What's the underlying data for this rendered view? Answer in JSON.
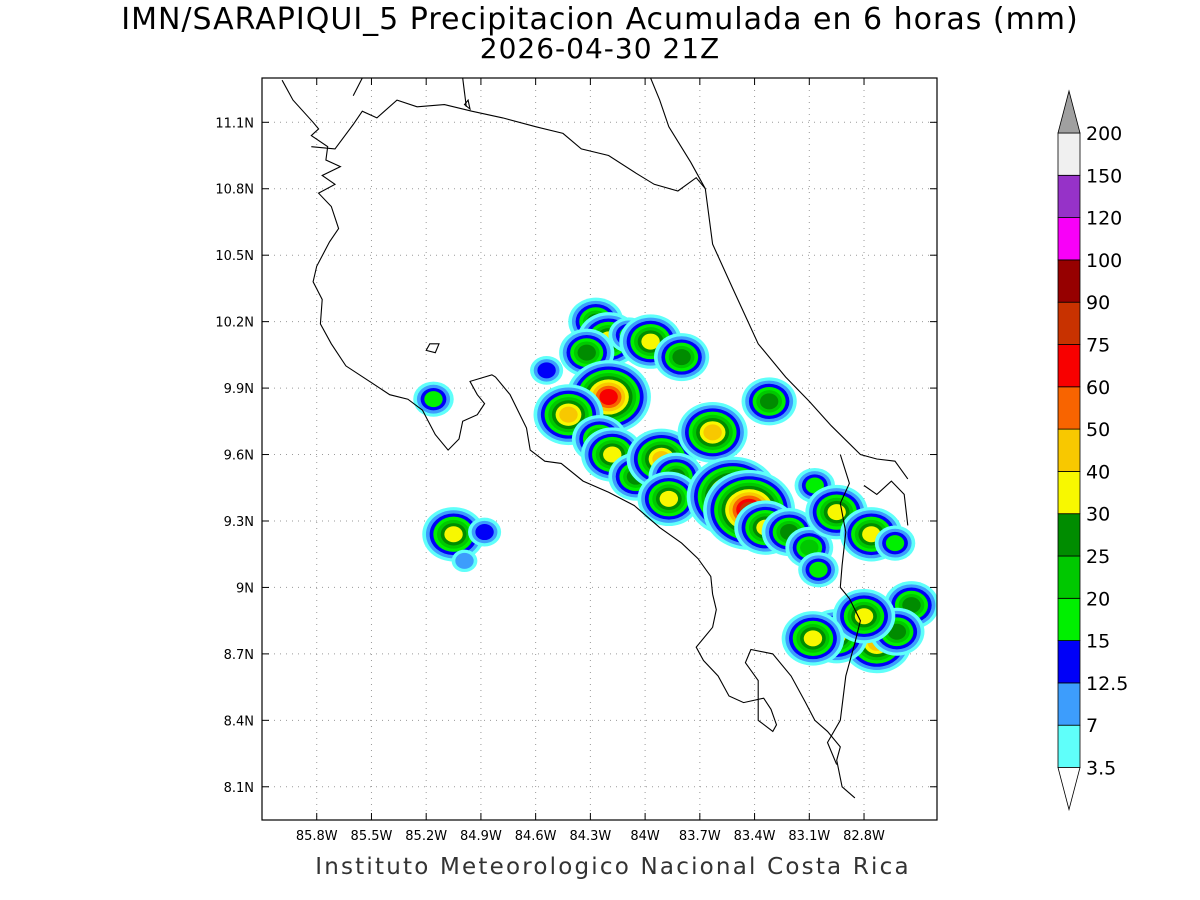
{
  "title": {
    "line1": "IMN/SARAPIQUI_5 Precipitacion Acumulada en 6 horas (mm)",
    "line2": "2026-04-30 21Z"
  },
  "footer": "Instituto Meteorologico Nacional Costa Rica",
  "map": {
    "lon_range": [
      -86.1,
      -82.4
    ],
    "lat_range": [
      7.95,
      11.3
    ],
    "lon_ticks": [
      {
        "value": -85.8,
        "label": "85.8W"
      },
      {
        "value": -85.5,
        "label": "85.5W"
      },
      {
        "value": -85.2,
        "label": "85.2W"
      },
      {
        "value": -84.9,
        "label": "84.9W"
      },
      {
        "value": -84.6,
        "label": "84.6W"
      },
      {
        "value": -84.3,
        "label": "84.3W"
      },
      {
        "value": -84.0,
        "label": "84W"
      },
      {
        "value": -83.7,
        "label": "83.7W"
      },
      {
        "value": -83.4,
        "label": "83.4W"
      },
      {
        "value": -83.1,
        "label": "83.1W"
      },
      {
        "value": -82.8,
        "label": "82.8W"
      }
    ],
    "lat_ticks": [
      {
        "value": 8.1,
        "label": "8.1N"
      },
      {
        "value": 8.4,
        "label": "8.4N"
      },
      {
        "value": 8.7,
        "label": "8.7N"
      },
      {
        "value": 9.0,
        "label": "9N"
      },
      {
        "value": 9.3,
        "label": "9.3N"
      },
      {
        "value": 9.6,
        "label": "9.6N"
      },
      {
        "value": 9.9,
        "label": "9.9N"
      },
      {
        "value": 10.2,
        "label": "10.2N"
      },
      {
        "value": 10.5,
        "label": "10.5N"
      },
      {
        "value": 10.8,
        "label": "10.8N"
      },
      {
        "value": 11.1,
        "label": "11.1N"
      }
    ],
    "grid": true,
    "coastlines": [
      [
        [
          -85.99,
          11.29
        ],
        [
          -85.93,
          11.2
        ],
        [
          -85.82,
          11.1
        ],
        [
          -85.79,
          11.07
        ],
        [
          -85.83,
          11.04
        ],
        [
          -85.74,
          10.99
        ],
        [
          -85.75,
          10.93
        ],
        [
          -85.67,
          10.9
        ],
        [
          -85.77,
          10.86
        ],
        [
          -85.7,
          10.82
        ],
        [
          -85.79,
          10.78
        ],
        [
          -85.72,
          10.72
        ],
        [
          -85.68,
          10.62
        ],
        [
          -85.73,
          10.56
        ],
        [
          -85.8,
          10.45
        ],
        [
          -85.82,
          10.38
        ],
        [
          -85.77,
          10.3
        ],
        [
          -85.78,
          10.19
        ],
        [
          -85.72,
          10.1
        ],
        [
          -85.64,
          10.0
        ],
        [
          -85.51,
          9.93
        ],
        [
          -85.4,
          9.87
        ],
        [
          -85.3,
          9.85
        ],
        [
          -85.22,
          9.8
        ],
        [
          -85.15,
          9.69
        ],
        [
          -85.08,
          9.62
        ],
        [
          -85.02,
          9.67
        ],
        [
          -85.0,
          9.75
        ],
        [
          -84.92,
          9.78
        ],
        [
          -84.88,
          9.83
        ],
        [
          -84.92,
          9.87
        ],
        [
          -84.96,
          9.93
        ],
        [
          -84.84,
          9.96
        ],
        [
          -84.82,
          9.95
        ],
        [
          -84.74,
          9.87
        ],
        [
          -84.65,
          9.72
        ],
        [
          -84.63,
          9.62
        ],
        [
          -84.55,
          9.57
        ],
        [
          -84.46,
          9.56
        ],
        [
          -84.34,
          9.48
        ],
        [
          -84.2,
          9.43
        ],
        [
          -84.06,
          9.37
        ],
        [
          -83.92,
          9.27
        ],
        [
          -83.8,
          9.2
        ],
        [
          -83.71,
          9.13
        ],
        [
          -83.64,
          9.05
        ],
        [
          -83.63,
          8.97
        ],
        [
          -83.61,
          8.9
        ],
        [
          -83.63,
          8.82
        ],
        [
          -83.72,
          8.73
        ],
        [
          -83.68,
          8.67
        ],
        [
          -83.6,
          8.6
        ],
        [
          -83.54,
          8.51
        ],
        [
          -83.46,
          8.48
        ],
        [
          -83.35,
          8.5
        ],
        [
          -83.31,
          8.45
        ],
        [
          -83.28,
          8.38
        ],
        [
          -83.3,
          8.35
        ],
        [
          -83.38,
          8.4
        ],
        [
          -83.38,
          8.58
        ],
        [
          -83.45,
          8.66
        ],
        [
          -83.42,
          8.72
        ],
        [
          -83.3,
          8.7
        ],
        [
          -83.2,
          8.6
        ],
        [
          -83.12,
          8.48
        ],
        [
          -83.07,
          8.4
        ],
        [
          -83.0,
          8.35
        ],
        [
          -82.93,
          8.28
        ],
        [
          -82.95,
          8.22
        ],
        [
          -82.92,
          8.1
        ],
        [
          -82.85,
          8.05
        ]
      ],
      [
        [
          -85.83,
          10.99
        ],
        [
          -85.7,
          10.98
        ],
        [
          -85.6,
          11.09
        ],
        [
          -85.55,
          11.15
        ],
        [
          -85.47,
          11.12
        ],
        [
          -85.36,
          11.2
        ],
        [
          -85.25,
          11.17
        ],
        [
          -85.1,
          11.18
        ],
        [
          -84.95,
          11.15
        ],
        [
          -84.78,
          11.12
        ],
        [
          -84.6,
          11.08
        ],
        [
          -84.45,
          11.05
        ],
        [
          -84.35,
          10.98
        ],
        [
          -84.2,
          10.95
        ],
        [
          -84.05,
          10.87
        ],
        [
          -83.95,
          10.82
        ],
        [
          -83.82,
          10.79
        ],
        [
          -83.72,
          10.85
        ],
        [
          -83.67,
          10.8
        ],
        [
          -83.63,
          10.55
        ],
        [
          -83.52,
          10.35
        ],
        [
          -83.38,
          10.1
        ],
        [
          -83.23,
          9.95
        ],
        [
          -83.1,
          9.84
        ],
        [
          -82.98,
          9.73
        ],
        [
          -82.82,
          9.6
        ],
        [
          -82.73,
          9.58
        ],
        [
          -82.63,
          9.57
        ],
        [
          -82.56,
          9.49
        ]
      ],
      [
        [
          -83.67,
          10.8
        ],
        [
          -83.75,
          10.92
        ],
        [
          -83.87,
          11.08
        ],
        [
          -83.92,
          11.2
        ],
        [
          -83.97,
          11.3
        ]
      ],
      [
        [
          -82.93,
          9.6
        ],
        [
          -82.88,
          9.47
        ],
        [
          -82.93,
          9.38
        ],
        [
          -82.9,
          9.25
        ],
        [
          -82.92,
          9.1
        ],
        [
          -82.93,
          9.0
        ],
        [
          -82.88,
          8.95
        ],
        [
          -82.82,
          8.85
        ],
        [
          -82.85,
          8.75
        ],
        [
          -82.9,
          8.6
        ],
        [
          -82.93,
          8.4
        ],
        [
          -83.0,
          8.3
        ],
        [
          -82.95,
          8.2
        ]
      ],
      [
        [
          -85.6,
          11.22
        ],
        [
          -85.55,
          11.3
        ]
      ],
      [
        [
          -84.98,
          11.17
        ],
        [
          -85.0,
          11.3
        ]
      ],
      [
        [
          -82.8,
          9.46
        ],
        [
          -82.73,
          9.42
        ],
        [
          -82.65,
          9.48
        ],
        [
          -82.58,
          9.42
        ],
        [
          -82.56,
          9.28
        ]
      ]
    ],
    "islands": [
      [
        [
          -85.2,
          10.07
        ],
        [
          -85.15,
          10.06
        ],
        [
          -85.13,
          10.1
        ],
        [
          -85.18,
          10.1
        ],
        [
          -85.2,
          10.07
        ]
      ],
      [
        [
          -84.99,
          11.18
        ],
        [
          -84.97,
          11.2
        ],
        [
          -84.96,
          11.16
        ],
        [
          -84.99,
          11.18
        ]
      ]
    ],
    "rain_cells": [
      {
        "lon": -84.27,
        "lat": 10.2,
        "level": "25"
      },
      {
        "lon": -84.2,
        "lat": 10.12,
        "level": "30"
      },
      {
        "lon": -84.32,
        "lat": 10.06,
        "level": "25"
      },
      {
        "lon": -84.09,
        "lat": 10.14,
        "level": "15"
      },
      {
        "lon": -83.97,
        "lat": 10.11,
        "level": "30"
      },
      {
        "lon": -83.8,
        "lat": 10.04,
        "level": "25"
      },
      {
        "lon": -84.54,
        "lat": 9.98,
        "level": "12.5"
      },
      {
        "lon": -84.2,
        "lat": 9.86,
        "level": "60"
      },
      {
        "lon": -84.42,
        "lat": 9.78,
        "level": "40"
      },
      {
        "lon": -84.25,
        "lat": 9.67,
        "level": "25"
      },
      {
        "lon": -84.18,
        "lat": 9.6,
        "level": "30"
      },
      {
        "lon": -84.05,
        "lat": 9.5,
        "level": "25"
      },
      {
        "lon": -83.91,
        "lat": 9.58,
        "level": "40"
      },
      {
        "lon": -83.83,
        "lat": 9.5,
        "level": "25"
      },
      {
        "lon": -83.87,
        "lat": 9.4,
        "level": "30"
      },
      {
        "lon": -83.63,
        "lat": 9.7,
        "level": "40"
      },
      {
        "lon": -83.53,
        "lat": 9.48,
        "level": "25"
      },
      {
        "lon": -83.52,
        "lat": 9.41,
        "level": "75"
      },
      {
        "lon": -83.43,
        "lat": 9.35,
        "level": "75"
      },
      {
        "lon": -83.34,
        "lat": 9.27,
        "level": "30"
      },
      {
        "lon": -83.32,
        "lat": 9.84,
        "level": "25"
      },
      {
        "lon": -83.21,
        "lat": 9.25,
        "level": "25"
      },
      {
        "lon": -83.1,
        "lat": 9.18,
        "level": "20"
      },
      {
        "lon": -83.07,
        "lat": 9.46,
        "level": "15"
      },
      {
        "lon": -82.95,
        "lat": 9.34,
        "level": "30"
      },
      {
        "lon": -82.76,
        "lat": 9.24,
        "level": "30"
      },
      {
        "lon": -82.63,
        "lat": 9.2,
        "level": "15"
      },
      {
        "lon": -82.54,
        "lat": 8.92,
        "level": "25"
      },
      {
        "lon": -82.73,
        "lat": 8.75,
        "level": "40"
      },
      {
        "lon": -82.62,
        "lat": 8.8,
        "level": "25"
      },
      {
        "lon": -82.95,
        "lat": 8.78,
        "level": "30"
      },
      {
        "lon": -82.8,
        "lat": 8.87,
        "level": "30"
      },
      {
        "lon": -83.08,
        "lat": 8.77,
        "level": "30"
      },
      {
        "lon": -85.05,
        "lat": 9.24,
        "level": "30"
      },
      {
        "lon": -84.88,
        "lat": 9.25,
        "level": "12.5"
      },
      {
        "lon": -84.99,
        "lat": 9.12,
        "level": "7"
      },
      {
        "lon": -85.16,
        "lat": 9.85,
        "level": "15"
      },
      {
        "lon": -83.05,
        "lat": 9.08,
        "level": "15"
      }
    ]
  },
  "colorbar": {
    "levels": [
      "3.5",
      "7",
      "12.5",
      "15",
      "20",
      "25",
      "30",
      "40",
      "50",
      "60",
      "75",
      "90",
      "100",
      "120",
      "150",
      "200"
    ],
    "colors": [
      "#5ffffa",
      "#3d9dfc",
      "#0000f8",
      "#00f000",
      "#00c800",
      "#008c00",
      "#f8f800",
      "#f8c800",
      "#f86400",
      "#f80000",
      "#c83200",
      "#960000",
      "#f800f8",
      "#9632c8",
      "#f0f0f0",
      "#a0a0a0"
    ]
  }
}
